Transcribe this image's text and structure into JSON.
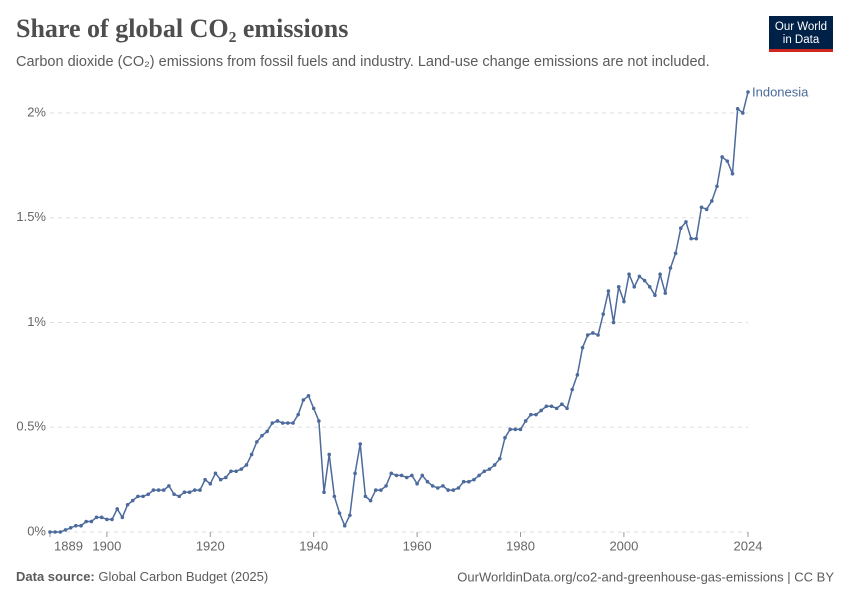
{
  "chart_data": {
    "type": "line",
    "title": "Share of global CO₂ emissions",
    "subtitle": "Carbon dioxide (CO₂) emissions from fossil fuels and industry. Land-use change emissions are not included.",
    "logo": [
      "Our World",
      "in Data"
    ],
    "source_label": "Data source:",
    "source": "Global Carbon Budget (2025)",
    "url": "OurWorldinData.org/co2-and-greenhouse-gas-emissions | CC BY",
    "x": [
      1889,
      1890,
      1891,
      1892,
      1893,
      1894,
      1895,
      1896,
      1897,
      1898,
      1899,
      1900,
      1901,
      1902,
      1903,
      1904,
      1905,
      1906,
      1907,
      1908,
      1909,
      1910,
      1911,
      1912,
      1913,
      1914,
      1915,
      1916,
      1917,
      1918,
      1919,
      1920,
      1921,
      1922,
      1923,
      1924,
      1925,
      1926,
      1927,
      1928,
      1929,
      1930,
      1931,
      1932,
      1933,
      1934,
      1935,
      1936,
      1937,
      1938,
      1939,
      1940,
      1941,
      1942,
      1943,
      1944,
      1945,
      1946,
      1947,
      1948,
      1949,
      1950,
      1951,
      1952,
      1953,
      1954,
      1955,
      1956,
      1957,
      1958,
      1959,
      1960,
      1961,
      1962,
      1963,
      1964,
      1965,
      1966,
      1967,
      1968,
      1969,
      1970,
      1971,
      1972,
      1973,
      1974,
      1975,
      1976,
      1977,
      1978,
      1979,
      1980,
      1981,
      1982,
      1983,
      1984,
      1985,
      1986,
      1987,
      1988,
      1989,
      1990,
      1991,
      1992,
      1993,
      1994,
      1995,
      1996,
      1997,
      1998,
      1999,
      2000,
      2001,
      2002,
      2003,
      2004,
      2005,
      2006,
      2007,
      2008,
      2009,
      2010,
      2011,
      2012,
      2013,
      2014,
      2015,
      2016,
      2017,
      2018,
      2019,
      2020,
      2021,
      2022,
      2023,
      2024
    ],
    "series": [
      {
        "name": "Indonesia",
        "color": "#4c6a9c",
        "values": [
          0.0,
          0.0,
          0.0,
          0.01,
          0.02,
          0.03,
          0.03,
          0.05,
          0.05,
          0.07,
          0.07,
          0.06,
          0.06,
          0.11,
          0.07,
          0.13,
          0.15,
          0.17,
          0.17,
          0.18,
          0.2,
          0.2,
          0.2,
          0.22,
          0.18,
          0.17,
          0.19,
          0.19,
          0.2,
          0.2,
          0.25,
          0.23,
          0.28,
          0.25,
          0.26,
          0.29,
          0.29,
          0.3,
          0.32,
          0.37,
          0.43,
          0.46,
          0.48,
          0.52,
          0.53,
          0.52,
          0.52,
          0.52,
          0.56,
          0.63,
          0.65,
          0.59,
          0.53,
          0.19,
          0.37,
          0.17,
          0.09,
          0.03,
          0.08,
          0.28,
          0.42,
          0.17,
          0.15,
          0.2,
          0.2,
          0.22,
          0.28,
          0.27,
          0.27,
          0.26,
          0.27,
          0.23,
          0.27,
          0.24,
          0.22,
          0.21,
          0.22,
          0.2,
          0.2,
          0.21,
          0.24,
          0.24,
          0.25,
          0.27,
          0.29,
          0.3,
          0.32,
          0.35,
          0.45,
          0.49,
          0.49,
          0.49,
          0.53,
          0.56,
          0.56,
          0.58,
          0.6,
          0.6,
          0.59,
          0.61,
          0.59,
          0.68,
          0.75,
          0.88,
          0.94,
          0.95,
          0.94,
          1.04,
          1.15,
          1.0,
          1.17,
          1.1,
          1.23,
          1.17,
          1.22,
          1.2,
          1.17,
          1.13,
          1.23,
          1.14,
          1.26,
          1.33,
          1.45,
          1.48,
          1.4,
          1.4,
          1.55,
          1.54,
          1.58,
          1.65,
          1.79,
          1.77,
          1.71,
          2.02,
          2.0,
          2.1
        ]
      }
    ],
    "xlim": [
      1889,
      2024
    ],
    "xticks": [
      1889,
      1900,
      1920,
      1940,
      1960,
      1980,
      2000,
      2024
    ],
    "ylim": [
      0,
      2.1
    ],
    "yticks": [
      {
        "value": 0,
        "label": "0%"
      },
      {
        "value": 0.5,
        "label": "0.5%"
      },
      {
        "value": 1,
        "label": "1%"
      },
      {
        "value": 1.5,
        "label": "1.5%"
      },
      {
        "value": 2,
        "label": "2%"
      }
    ],
    "grid": true
  }
}
